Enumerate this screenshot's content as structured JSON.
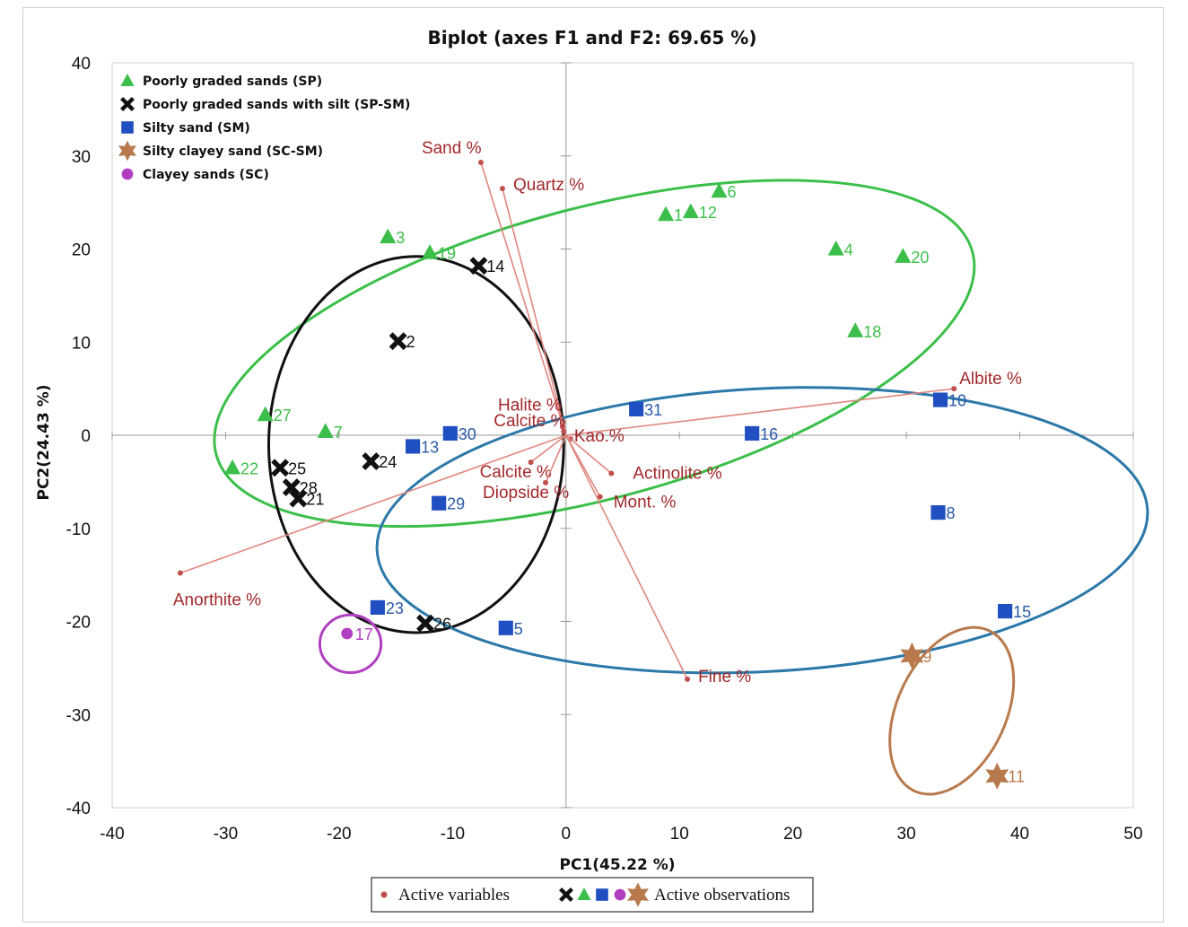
{
  "chart_data": {
    "type": "scatter",
    "title": "Biplot (axes F1 and F2: 69.65 %)",
    "xlabel": "PC1(45.22 %)",
    "ylabel": "PC2(24.43 %)",
    "xlim": [
      -40,
      50
    ],
    "ylim": [
      -40,
      40
    ],
    "x_ticks": [
      -40,
      -30,
      -20,
      -10,
      0,
      10,
      20,
      30,
      40,
      50
    ],
    "y_ticks": [
      -40,
      -30,
      -20,
      -10,
      0,
      10,
      20,
      30,
      40
    ],
    "x_tick_labels": [
      "-40",
      "-30",
      "-20",
      "-10",
      "0",
      "10",
      "20",
      "30",
      "40",
      "50"
    ],
    "y_tick_labels": [
      "-40",
      "-30",
      "-20",
      "-10",
      "0",
      "10",
      "20",
      "30",
      "40"
    ],
    "legend_position": "top-left",
    "groups": [
      {
        "key": "SP",
        "name": "Poorly graded sands (SP)",
        "marker": "triangle",
        "color": "#3cbf4a",
        "label_color": "#3cbf4a",
        "points": [
          {
            "label": "1",
            "x": 8.8,
            "y": 23.7
          },
          {
            "label": "12",
            "x": 11.0,
            "y": 24.0
          },
          {
            "label": "6",
            "x": 13.5,
            "y": 26.2
          },
          {
            "label": "3",
            "x": -15.7,
            "y": 21.3
          },
          {
            "label": "19",
            "x": -12.0,
            "y": 19.6
          },
          {
            "label": "4",
            "x": 23.8,
            "y": 20.0
          },
          {
            "label": "20",
            "x": 29.7,
            "y": 19.2
          },
          {
            "label": "18",
            "x": 25.5,
            "y": 11.2
          },
          {
            "label": "27",
            "x": -26.5,
            "y": 2.2
          },
          {
            "label": "7",
            "x": -21.2,
            "y": 0.4
          },
          {
            "label": "22",
            "x": -29.4,
            "y": -3.5
          }
        ]
      },
      {
        "key": "SP-SM",
        "name": "Poorly graded sands with silt (SP-SM)",
        "marker": "cross",
        "color": "#111111",
        "label_color": "#111111",
        "points": [
          {
            "label": "14",
            "x": -7.7,
            "y": 18.2
          },
          {
            "label": "2",
            "x": -14.8,
            "y": 10.1
          },
          {
            "label": "25",
            "x": -25.2,
            "y": -3.5
          },
          {
            "label": "24",
            "x": -17.2,
            "y": -2.8
          },
          {
            "label": "28",
            "x": -24.2,
            "y": -5.6
          },
          {
            "label": "21",
            "x": -23.6,
            "y": -6.8
          },
          {
            "label": "26",
            "x": -12.4,
            "y": -20.2
          }
        ]
      },
      {
        "key": "SM",
        "name": "Silty sand (SM)",
        "marker": "square",
        "color": "#1f4fc0",
        "label_color": "#2a5aa8",
        "points": [
          {
            "label": "31",
            "x": 6.2,
            "y": 2.8
          },
          {
            "label": "16",
            "x": 16.4,
            "y": 0.2
          },
          {
            "label": "10",
            "x": 33.0,
            "y": 3.8
          },
          {
            "label": "30",
            "x": -10.2,
            "y": 0.2
          },
          {
            "label": "13",
            "x": -13.5,
            "y": -1.2
          },
          {
            "label": "29",
            "x": -11.2,
            "y": -7.3
          },
          {
            "label": "8",
            "x": 32.8,
            "y": -8.3
          },
          {
            "label": "23",
            "x": -16.6,
            "y": -18.5
          },
          {
            "label": "5",
            "x": -5.3,
            "y": -20.7
          },
          {
            "label": "15",
            "x": 38.7,
            "y": -18.9
          }
        ]
      },
      {
        "key": "SC-SM",
        "name": "Silty clayey sand (SC-SM)",
        "marker": "star",
        "color": "#b87a4c",
        "label_color": "#b87a4c",
        "points": [
          {
            "label": "9",
            "x": 30.5,
            "y": -23.7
          },
          {
            "label": "11",
            "x": 38.0,
            "y": -36.6
          }
        ]
      },
      {
        "key": "SC",
        "name": "Clayey sands (SC)",
        "marker": "circle",
        "color": "#b03fc0",
        "label_color": "#b03fc0",
        "points": [
          {
            "label": "17",
            "x": -19.3,
            "y": -21.3
          }
        ]
      }
    ],
    "variables": [
      {
        "label": "Sand %",
        "x": -7.5,
        "y": 29.3
      },
      {
        "label": "Quartz %",
        "x": -5.6,
        "y": 26.5
      },
      {
        "label": "Albite %",
        "x": 34.2,
        "y": 5.0
      },
      {
        "label": "Halite %",
        "x": -0.3,
        "y": 0.9
      },
      {
        "label": "Calcite %",
        "x": -0.2,
        "y": 0.4
      },
      {
        "label": "Calcite %",
        "x": -3.1,
        "y": -2.9
      },
      {
        "label": "Kao.%",
        "x": 0.4,
        "y": -0.4
      },
      {
        "label": "Actinolite %",
        "x": 4.0,
        "y": -4.1
      },
      {
        "label": "Diopside %",
        "x": -1.8,
        "y": -5.1
      },
      {
        "label": "Mont. %",
        "x": 3.0,
        "y": -6.6
      },
      {
        "label": "Anorthite %",
        "x": -34.0,
        "y": -14.8
      },
      {
        "label": "Fine %",
        "x": 10.7,
        "y": -26.2
      }
    ],
    "ellipses": [
      {
        "group": "SP",
        "color": "#3cbf4a",
        "cx": 2.5,
        "cy": 8.8,
        "rx": 34.5,
        "ry": 15.6,
        "rotation_deg": 15
      },
      {
        "group": "SP-SM",
        "color": "#111111",
        "cx": -13.2,
        "cy": -1.0,
        "rx": 13.0,
        "ry": 20.2,
        "rotation_deg": 0
      },
      {
        "group": "SM",
        "color": "#2c78a8",
        "cx": 17.3,
        "cy": -10.2,
        "rx": 34.0,
        "ry": 15.2,
        "rotation_deg": 3
      },
      {
        "group": "SC-SM",
        "color": "#b87a4c",
        "cx": 34.0,
        "cy": -29.6,
        "rx": 4.8,
        "ry": 9.5,
        "rotation_deg": -25
      },
      {
        "group": "SC",
        "color": "#b03fc0",
        "cx": -19.0,
        "cy": -22.4,
        "rx": 2.7,
        "ry": 3.1,
        "rotation_deg": 0
      }
    ],
    "bottom_legend": {
      "variables_label": "Active variables",
      "observations_label": "Active observations"
    }
  },
  "colors": {
    "variable": "#a3282a",
    "axis_line": "#9a9a9a"
  }
}
